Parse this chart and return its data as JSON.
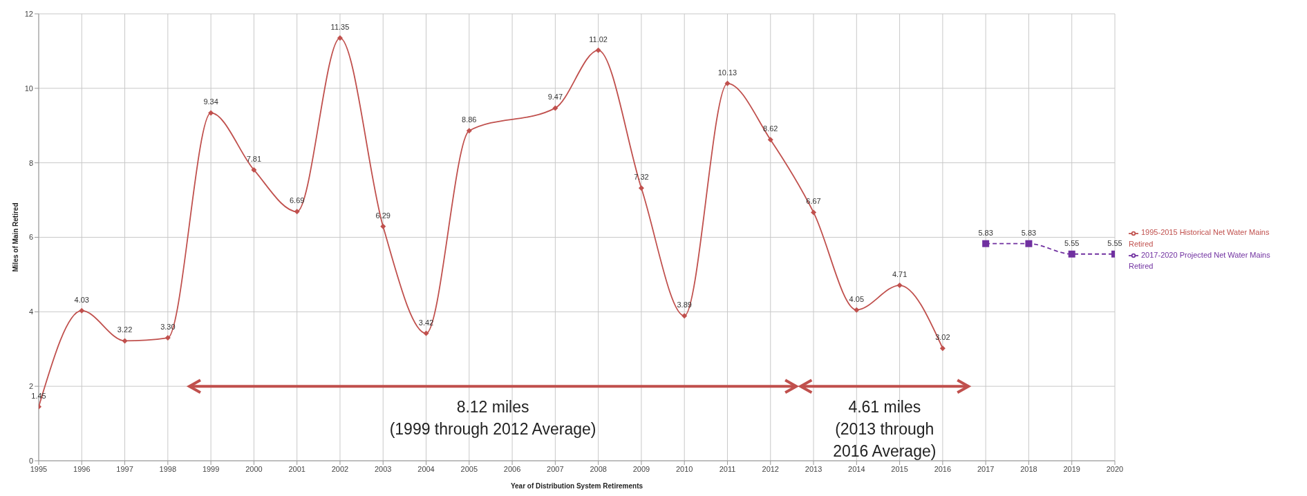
{
  "chart_data": {
    "type": "line",
    "xlabel": "Year of Distribution System Retirements",
    "ylabel": "Miles of Main Retired",
    "categories": [
      "1995",
      "1996",
      "1997",
      "1998",
      "1999",
      "2000",
      "2001",
      "2002",
      "2003",
      "2004",
      "2005",
      "2006",
      "2007",
      "2008",
      "2009",
      "2010",
      "2011",
      "2012",
      "2013",
      "2014",
      "2015",
      "2016",
      "2017",
      "2018",
      "2019",
      "2020"
    ],
    "series": [
      {
        "name": "1995-2015 Historical Net Water Mains Retired",
        "color": "#c0504d",
        "marker": "diamond",
        "line_style": "solid",
        "values": [
          1.45,
          4.03,
          3.22,
          3.3,
          9.34,
          7.81,
          6.69,
          11.35,
          6.29,
          3.42,
          8.86,
          null,
          9.47,
          11.02,
          7.32,
          3.89,
          10.13,
          8.62,
          6.67,
          4.05,
          4.71,
          3.02,
          null,
          null,
          null,
          null
        ]
      },
      {
        "name": "2017-2020 Projected Net Water Mains Retired",
        "color": "#7030a0",
        "marker": "square",
        "line_style": "dashed",
        "values": [
          null,
          null,
          null,
          null,
          null,
          null,
          null,
          null,
          null,
          null,
          null,
          null,
          null,
          null,
          null,
          null,
          null,
          null,
          null,
          null,
          null,
          null,
          5.83,
          5.83,
          5.55,
          5.55
        ]
      }
    ],
    "value_labels": [
      [
        "1.45",
        "4.03",
        "3.22",
        "3.30",
        "9.34",
        "7.81",
        "6.69",
        "11.35",
        "6.29",
        "3.42",
        "8.86",
        null,
        "9.47",
        "11.02",
        "7.32",
        "3.89",
        "10.13",
        "8.62",
        "6.67",
        "4.05",
        "4.71",
        "3.02",
        null,
        null,
        null,
        null
      ],
      [
        null,
        null,
        null,
        null,
        null,
        null,
        null,
        null,
        null,
        null,
        null,
        null,
        null,
        null,
        null,
        null,
        null,
        null,
        null,
        null,
        null,
        null,
        "5.83",
        "5.83",
        "5.55",
        "5.55"
      ]
    ],
    "ylim": [
      0,
      12
    ],
    "yticks": [
      0,
      2,
      4,
      6,
      8,
      10,
      12
    ],
    "grid": true,
    "legend": "right",
    "annotations": [
      "8.12 miles\n(1999 through 2012 Average)",
      "4.61 miles\n(2013 through\n2016 Average)"
    ]
  }
}
